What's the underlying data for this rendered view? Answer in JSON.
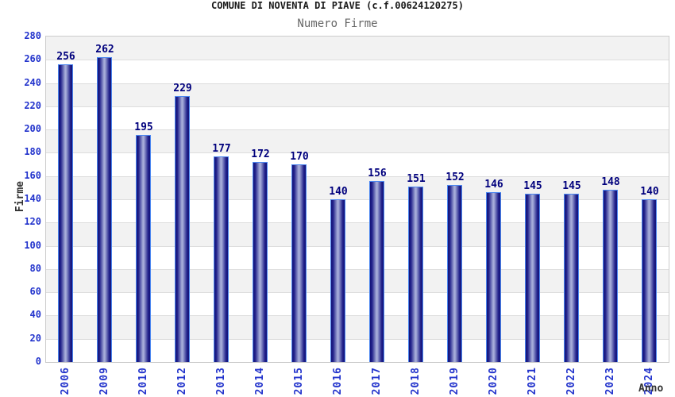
{
  "header": {
    "title": "COMUNE DI NOVENTA DI PIAVE (c.f.00624120275)",
    "subtitle": "Numero Firme"
  },
  "chart_data": {
    "type": "bar",
    "categories": [
      "2006",
      "2009",
      "2010",
      "2012",
      "2013",
      "2014",
      "2015",
      "2016",
      "2017",
      "2018",
      "2019",
      "2020",
      "2021",
      "2022",
      "2023",
      "2024"
    ],
    "values": [
      256,
      262,
      195,
      229,
      177,
      172,
      170,
      140,
      156,
      151,
      152,
      146,
      145,
      145,
      148,
      140
    ],
    "title": "COMUNE DI NOVENTA DI PIAVE (c.f.00624120275)",
    "subtitle": "Numero Firme",
    "xlabel": "Anno",
    "ylabel": "Firme",
    "ylim": [
      0,
      280
    ],
    "ytick_step": 20,
    "legend": "none",
    "grid": "horizontal-bands-alternating",
    "bar_value_labels": "above-bars",
    "x_tick_rotation": "vertical",
    "colors": {
      "tick_label": "#2233cc",
      "value_label": "#00007d",
      "bar_edge": "#131378",
      "bar_center": "#a6acd9",
      "bar_outline": "#4b86f0",
      "band_gray": "#f2f2f2",
      "band_white": "#ffffff",
      "grid_line": "#dddddd",
      "title_color": "#1a1a1a",
      "subtitle_color": "#666666",
      "axis_title_color": "#333333"
    }
  }
}
